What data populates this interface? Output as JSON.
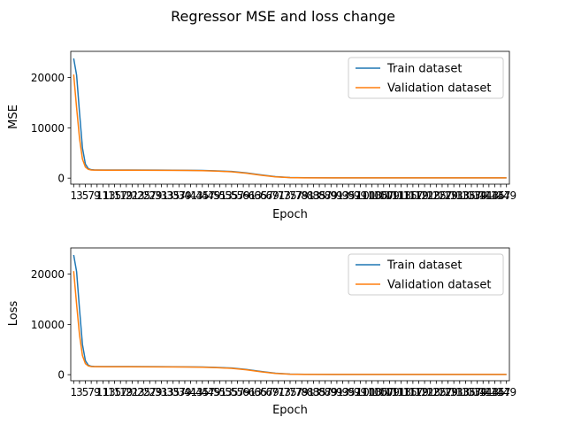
{
  "figure": {
    "suptitle": "Regressor MSE and loss change"
  },
  "chart_data": [
    {
      "type": "line",
      "ylabel": "MSE",
      "xlabel": "Epoch",
      "xlim": [
        0,
        150
      ],
      "ylim": [
        -1200,
        25200
      ],
      "yticks": [
        0,
        10000,
        20000
      ],
      "ytick_labels": [
        "0",
        "10000",
        "20000"
      ],
      "xticks_start": 1,
      "xticks_end": 149,
      "xticks_step": 2,
      "legend": {
        "placement": "top-right"
      },
      "grid": false,
      "series": [
        {
          "name": "Train dataset",
          "color": "#1f77b4",
          "points": [
            [
              1,
              23800
            ],
            [
              2,
              20500
            ],
            [
              3,
              13000
            ],
            [
              4,
              6000
            ],
            [
              5,
              2800
            ],
            [
              6,
              1900
            ],
            [
              7,
              1680
            ],
            [
              8,
              1630
            ],
            [
              9,
              1620
            ],
            [
              12,
              1615
            ],
            [
              20,
              1610
            ],
            [
              30,
              1595
            ],
            [
              40,
              1560
            ],
            [
              45,
              1520
            ],
            [
              50,
              1450
            ],
            [
              55,
              1320
            ],
            [
              60,
              1050
            ],
            [
              65,
              650
            ],
            [
              70,
              300
            ],
            [
              75,
              120
            ],
            [
              80,
              70
            ],
            [
              90,
              60
            ],
            [
              100,
              58
            ],
            [
              120,
              57
            ],
            [
              140,
              56
            ],
            [
              149,
              56
            ]
          ]
        },
        {
          "name": "Validation dataset",
          "color": "#ff7f0e",
          "points": [
            [
              1,
              20600
            ],
            [
              2,
              14000
            ],
            [
              3,
              7900
            ],
            [
              4,
              3800
            ],
            [
              5,
              2200
            ],
            [
              6,
              1750
            ],
            [
              7,
              1620
            ],
            [
              8,
              1590
            ],
            [
              9,
              1585
            ],
            [
              12,
              1580
            ],
            [
              20,
              1575
            ],
            [
              30,
              1560
            ],
            [
              40,
              1525
            ],
            [
              45,
              1480
            ],
            [
              50,
              1400
            ],
            [
              55,
              1260
            ],
            [
              60,
              980
            ],
            [
              65,
              580
            ],
            [
              70,
              250
            ],
            [
              75,
              100
            ],
            [
              80,
              60
            ],
            [
              90,
              52
            ],
            [
              100,
              50
            ],
            [
              120,
              49
            ],
            [
              140,
              48
            ],
            [
              149,
              48
            ]
          ]
        }
      ]
    },
    {
      "type": "line",
      "ylabel": "Loss",
      "xlabel": "Epoch",
      "xlim": [
        0,
        150
      ],
      "ylim": [
        -1200,
        25200
      ],
      "yticks": [
        0,
        10000,
        20000
      ],
      "ytick_labels": [
        "0",
        "10000",
        "20000"
      ],
      "xticks_start": 1,
      "xticks_end": 149,
      "xticks_step": 2,
      "legend": {
        "placement": "top-right"
      },
      "grid": false,
      "series": [
        {
          "name": "Train dataset",
          "color": "#1f77b4",
          "points": [
            [
              1,
              23800
            ],
            [
              2,
              20500
            ],
            [
              3,
              13000
            ],
            [
              4,
              6000
            ],
            [
              5,
              2800
            ],
            [
              6,
              1900
            ],
            [
              7,
              1680
            ],
            [
              8,
              1630
            ],
            [
              9,
              1620
            ],
            [
              12,
              1615
            ],
            [
              20,
              1610
            ],
            [
              30,
              1595
            ],
            [
              40,
              1560
            ],
            [
              45,
              1520
            ],
            [
              50,
              1450
            ],
            [
              55,
              1320
            ],
            [
              60,
              1050
            ],
            [
              65,
              650
            ],
            [
              70,
              300
            ],
            [
              75,
              120
            ],
            [
              80,
              70
            ],
            [
              90,
              60
            ],
            [
              100,
              58
            ],
            [
              120,
              57
            ],
            [
              140,
              56
            ],
            [
              149,
              56
            ]
          ]
        },
        {
          "name": "Validation dataset",
          "color": "#ff7f0e",
          "points": [
            [
              1,
              20600
            ],
            [
              2,
              14000
            ],
            [
              3,
              7900
            ],
            [
              4,
              3800
            ],
            [
              5,
              2200
            ],
            [
              6,
              1750
            ],
            [
              7,
              1620
            ],
            [
              8,
              1590
            ],
            [
              9,
              1585
            ],
            [
              12,
              1580
            ],
            [
              20,
              1575
            ],
            [
              30,
              1560
            ],
            [
              40,
              1525
            ],
            [
              45,
              1480
            ],
            [
              50,
              1400
            ],
            [
              55,
              1260
            ],
            [
              60,
              980
            ],
            [
              65,
              580
            ],
            [
              70,
              250
            ],
            [
              75,
              100
            ],
            [
              80,
              60
            ],
            [
              90,
              52
            ],
            [
              100,
              50
            ],
            [
              120,
              49
            ],
            [
              140,
              48
            ],
            [
              149,
              48
            ]
          ]
        }
      ]
    }
  ]
}
